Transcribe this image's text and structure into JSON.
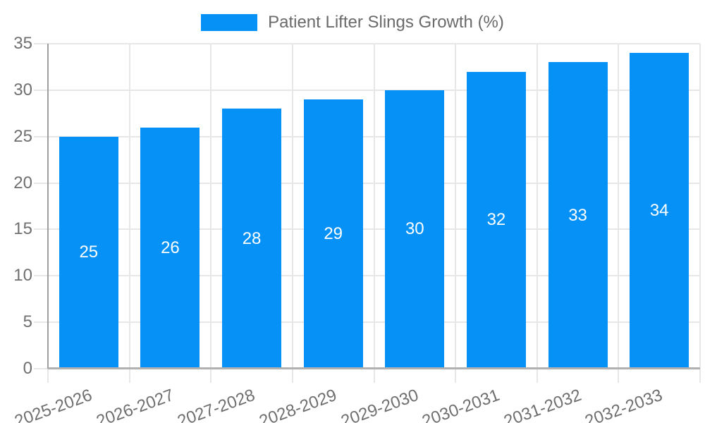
{
  "chart_data": {
    "type": "bar",
    "title": "Patient Lifter Slings Growth (%)",
    "legend_entries": [
      "Patient Lifter Slings Growth (%)"
    ],
    "legend_position": "top-center",
    "categories": [
      "2025-2026",
      "2026-2027",
      "2027-2028",
      "2028-2029",
      "2029-2030",
      "2030-2031",
      "2031-2032",
      "2032-2033"
    ],
    "values": [
      25,
      26,
      28,
      29,
      30,
      32,
      33,
      34
    ],
    "xlabel": "",
    "ylabel": "",
    "ylim": [
      0,
      35
    ],
    "yticks": [
      0,
      5,
      10,
      15,
      20,
      25,
      30,
      35
    ],
    "grid": true,
    "x_label_rotation_deg": -20,
    "colors": {
      "bar": "#0591f5",
      "value_label": "#ffffff",
      "axis_text": "#6f6f6f",
      "legend_text": "#6a6a6a",
      "grid_line": "#e7e7e7",
      "y_axis_line": "#9e9e9e",
      "x_axis_line": "#b1b1b1",
      "background": "#ffffff"
    }
  }
}
